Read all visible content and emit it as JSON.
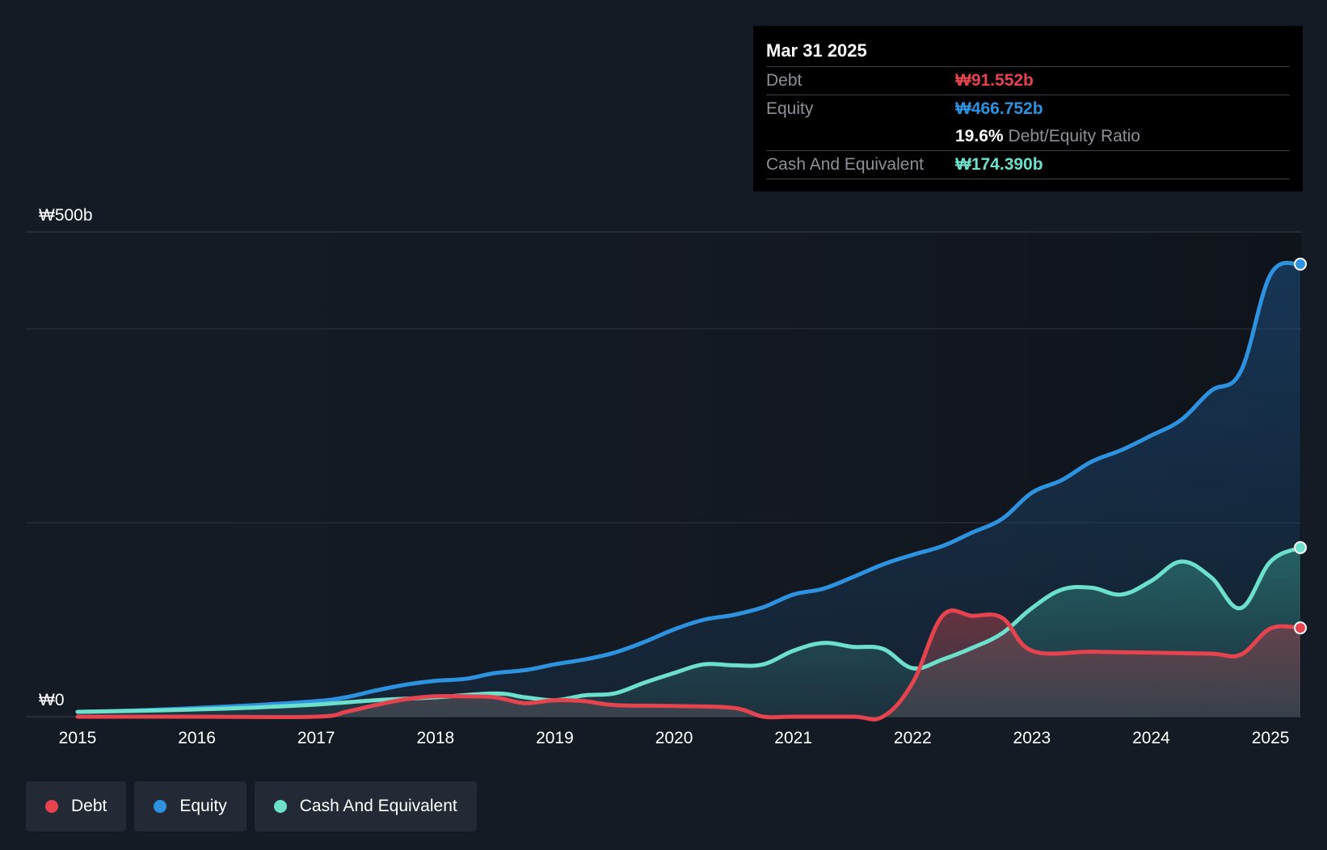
{
  "tooltip": {
    "date": "Mar 31 2025",
    "debt_label": "Debt",
    "debt_value": "₩91.552b",
    "equity_label": "Equity",
    "equity_value": "₩466.752b",
    "ratio_value": "19.6%",
    "ratio_label": "Debt/Equity Ratio",
    "cash_label": "Cash And Equivalent",
    "cash_value": "₩174.390b"
  },
  "colors": {
    "debt": "#e5444f",
    "equity": "#2d93e0",
    "cash": "#6de0cc",
    "background": "#151b24"
  },
  "legend": [
    {
      "label": "Debt",
      "color": "#e5444f"
    },
    {
      "label": "Equity",
      "color": "#2d93e0"
    },
    {
      "label": "Cash And Equivalent",
      "color": "#6de0cc"
    }
  ],
  "chart_data": {
    "type": "area",
    "title": "",
    "xlabel": "",
    "ylabel": "",
    "xlim": [
      2015.0,
      2025.25
    ],
    "ylim": [
      0,
      500
    ],
    "ytick_labels": [
      {
        "value": 500,
        "label": "₩500b"
      },
      {
        "value": 0,
        "label": "₩0"
      }
    ],
    "gridlines": [
      0,
      200,
      400,
      500
    ],
    "xtick_labels": [
      "2015",
      "2016",
      "2017",
      "2018",
      "2019",
      "2020",
      "2021",
      "2022",
      "2023",
      "2024",
      "2025"
    ],
    "series": [
      {
        "name": "Equity",
        "color": "#2d93e0",
        "points": [
          [
            2015.0,
            5
          ],
          [
            2015.5,
            6.5
          ],
          [
            2016.0,
            9
          ],
          [
            2016.5,
            12
          ],
          [
            2017.0,
            16
          ],
          [
            2017.25,
            20
          ],
          [
            2017.5,
            27
          ],
          [
            2017.75,
            33
          ],
          [
            2018.0,
            37
          ],
          [
            2018.25,
            39
          ],
          [
            2018.5,
            45
          ],
          [
            2018.75,
            48
          ],
          [
            2019.0,
            54
          ],
          [
            2019.25,
            59
          ],
          [
            2019.5,
            66
          ],
          [
            2019.75,
            77
          ],
          [
            2020.0,
            90
          ],
          [
            2020.25,
            100
          ],
          [
            2020.5,
            105
          ],
          [
            2020.75,
            113
          ],
          [
            2021.0,
            126
          ],
          [
            2021.25,
            132
          ],
          [
            2021.5,
            144
          ],
          [
            2021.75,
            157
          ],
          [
            2022.0,
            167
          ],
          [
            2022.25,
            176
          ],
          [
            2022.5,
            190
          ],
          [
            2022.75,
            204
          ],
          [
            2023.0,
            231
          ],
          [
            2023.25,
            244
          ],
          [
            2023.5,
            263
          ],
          [
            2023.75,
            275
          ],
          [
            2024.0,
            290
          ],
          [
            2024.25,
            306
          ],
          [
            2024.5,
            336
          ],
          [
            2024.75,
            356
          ],
          [
            2025.0,
            456
          ],
          [
            2025.25,
            466.752
          ]
        ]
      },
      {
        "name": "Cash And Equivalent",
        "color": "#6de0cc",
        "points": [
          [
            2015.0,
            5
          ],
          [
            2015.5,
            6
          ],
          [
            2016.0,
            7.5
          ],
          [
            2016.5,
            9.5
          ],
          [
            2017.0,
            12.5
          ],
          [
            2017.5,
            17
          ],
          [
            2018.0,
            20
          ],
          [
            2018.5,
            24
          ],
          [
            2018.75,
            20
          ],
          [
            2019.0,
            17
          ],
          [
            2019.25,
            22
          ],
          [
            2019.5,
            24
          ],
          [
            2019.75,
            35
          ],
          [
            2020.0,
            45
          ],
          [
            2020.25,
            54
          ],
          [
            2020.5,
            53
          ],
          [
            2020.75,
            54
          ],
          [
            2021.0,
            68
          ],
          [
            2021.25,
            76
          ],
          [
            2021.5,
            72
          ],
          [
            2021.75,
            70
          ],
          [
            2022.0,
            50
          ],
          [
            2022.25,
            59
          ],
          [
            2022.5,
            71
          ],
          [
            2022.75,
            86
          ],
          [
            2023.0,
            112
          ],
          [
            2023.25,
            131
          ],
          [
            2023.5,
            133
          ],
          [
            2023.75,
            126
          ],
          [
            2024.0,
            140
          ],
          [
            2024.25,
            160
          ],
          [
            2024.5,
            144
          ],
          [
            2024.75,
            112
          ],
          [
            2025.0,
            160
          ],
          [
            2025.25,
            174.39
          ]
        ]
      },
      {
        "name": "Debt",
        "color": "#e5444f",
        "points": [
          [
            2015.0,
            0
          ],
          [
            2016.0,
            0
          ],
          [
            2017.0,
            0
          ],
          [
            2017.25,
            5
          ],
          [
            2017.5,
            12
          ],
          [
            2017.75,
            18
          ],
          [
            2018.0,
            21
          ],
          [
            2018.25,
            21
          ],
          [
            2018.5,
            20
          ],
          [
            2018.75,
            14
          ],
          [
            2019.0,
            17
          ],
          [
            2019.25,
            16
          ],
          [
            2019.5,
            12
          ],
          [
            2020.0,
            11
          ],
          [
            2020.5,
            9
          ],
          [
            2020.75,
            0
          ],
          [
            2021.0,
            0
          ],
          [
            2021.5,
            0
          ],
          [
            2021.75,
            0
          ],
          [
            2022.0,
            35
          ],
          [
            2022.25,
            104
          ],
          [
            2022.5,
            104
          ],
          [
            2022.75,
            102
          ],
          [
            2023.0,
            68
          ],
          [
            2023.5,
            67
          ],
          [
            2024.0,
            66
          ],
          [
            2024.5,
            65
          ],
          [
            2024.75,
            64
          ],
          [
            2025.0,
            91
          ],
          [
            2025.25,
            91.552
          ]
        ]
      }
    ]
  }
}
